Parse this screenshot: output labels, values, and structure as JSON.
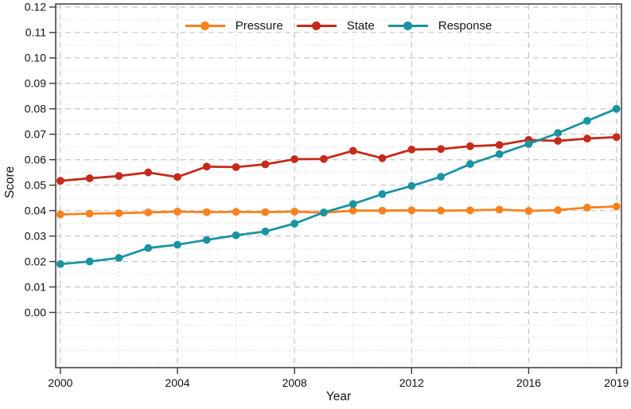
{
  "chart_data": {
    "type": "line",
    "title": "",
    "xlabel": "Year",
    "ylabel": "Score",
    "x": [
      2000,
      2001,
      2002,
      2003,
      2004,
      2005,
      2006,
      2007,
      2008,
      2009,
      2010,
      2011,
      2012,
      2013,
      2014,
      2015,
      2016,
      2017,
      2018,
      2019
    ],
    "series": [
      {
        "name": "Pressure",
        "color": "#f8811c",
        "values": [
          0.0385,
          0.0388,
          0.039,
          0.0393,
          0.0396,
          0.0394,
          0.0395,
          0.0394,
          0.0396,
          0.0392,
          0.04,
          0.04,
          0.0401,
          0.04,
          0.0401,
          0.0404,
          0.0399,
          0.0402,
          0.0412,
          0.0416
        ]
      },
      {
        "name": "State",
        "color": "#c52a1a",
        "values": [
          0.0517,
          0.0527,
          0.0536,
          0.055,
          0.0532,
          0.0573,
          0.0571,
          0.0582,
          0.0602,
          0.0603,
          0.0635,
          0.0606,
          0.064,
          0.0642,
          0.0653,
          0.0658,
          0.0678,
          0.0674,
          0.0683,
          0.0689
        ]
      },
      {
        "name": "Response",
        "color": "#1b93a1",
        "values": [
          0.019,
          0.02,
          0.0214,
          0.0253,
          0.0266,
          0.0285,
          0.0303,
          0.0318,
          0.0349,
          0.0393,
          0.0426,
          0.0465,
          0.0497,
          0.0533,
          0.0583,
          0.0622,
          0.0662,
          0.0705,
          0.0753,
          0.08
        ]
      }
    ],
    "xlim": [
      1999.84,
      2019.17
    ],
    "ylim": [
      -0.0217,
      0.1212
    ],
    "xticks": {
      "major": [
        2000,
        2004,
        2008,
        2012,
        2016,
        2019
      ],
      "labels": [
        "2000",
        "2004",
        "2008",
        "2012",
        "2016",
        "2019"
      ],
      "minor": [
        2002,
        2006,
        2010,
        2014,
        2018
      ]
    },
    "yticks": {
      "major": [
        0.0,
        0.01,
        0.02,
        0.03,
        0.04,
        0.05,
        0.06,
        0.07,
        0.08,
        0.09,
        0.1,
        0.11,
        0.12
      ],
      "labels": [
        "0.00",
        "0.01",
        "0.02",
        "0.03",
        "0.04",
        "0.05",
        "0.06",
        "0.07",
        "0.08",
        "0.09",
        "0.10",
        "0.11",
        "0.12"
      ],
      "minor": [
        -0.02,
        -0.015,
        -0.01,
        -0.005,
        0.005,
        0.015,
        0.025,
        0.035,
        0.045,
        0.055,
        0.065,
        0.075,
        0.085,
        0.095,
        0.105,
        0.115
      ]
    },
    "grid": {
      "major_on": true,
      "minor_on": true,
      "major_color": "#c6c6c6",
      "minor_color": "#d8d8d8"
    },
    "legend": {
      "position": "top-center",
      "labels": [
        "Pressure",
        "State",
        "Response"
      ]
    },
    "frame_color": "#3a3a3a",
    "tick_label_color": "#111111",
    "background": "#ffffff",
    "marker": "circle"
  }
}
